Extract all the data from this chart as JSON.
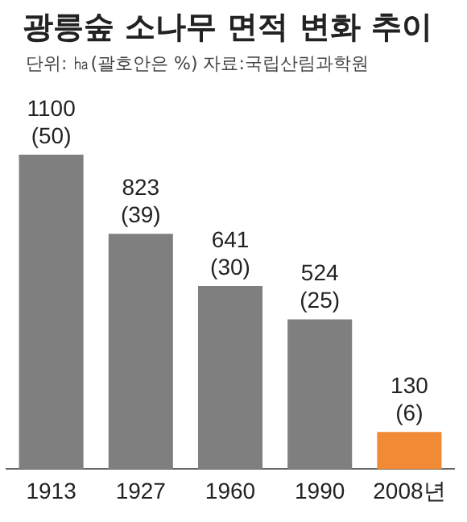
{
  "chart_data": {
    "type": "bar",
    "title": "광릉숲 소나무 면적 변화 추이",
    "subtitle": "단위: ㏊(괄호안은 %) 자료:국립산림과학원",
    "categories": [
      "1913",
      "1927",
      "1960",
      "1990",
      "2008년"
    ],
    "values": [
      1100,
      823,
      641,
      524,
      130
    ],
    "colors": [
      "#7f7f7f",
      "#7f7f7f",
      "#7f7f7f",
      "#7f7f7f",
      "#f08a35"
    ],
    "value_labels": [
      "1100\n(50)",
      "823\n(39)",
      "641\n(30)",
      "524\n(25)",
      "130\n(6)"
    ],
    "ylim": [
      0,
      1100
    ],
    "grid": false,
    "legend": false
  }
}
